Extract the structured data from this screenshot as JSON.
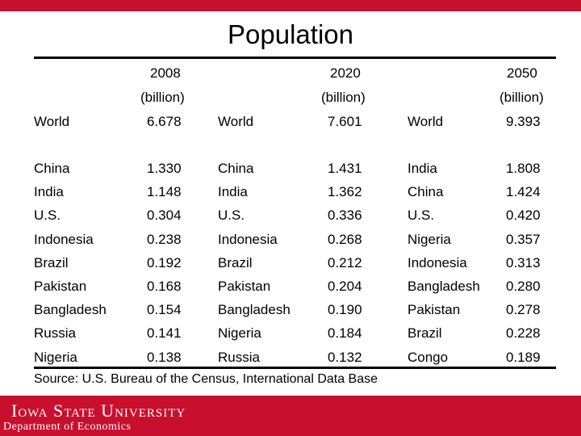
{
  "title": "Population",
  "headers": {
    "y2008": "2008",
    "y2020": "2020",
    "y2050": "2050",
    "unit_2008": "(billion)",
    "unit_2020": "(billion)",
    "unit_2050": "(billion)"
  },
  "rows": [
    {
      "c2008": "World",
      "v2008": "6.678",
      "c2020": "World",
      "v2020": "7.601",
      "c2050": "World",
      "v2050": "9.393"
    },
    {
      "c2008": "China",
      "v2008": "1.330",
      "c2020": "China",
      "v2020": "1.431",
      "c2050": "India",
      "v2050": "1.808"
    },
    {
      "c2008": "India",
      "v2008": "1.148",
      "c2020": "India",
      "v2020": "1.362",
      "c2050": "China",
      "v2050": "1.424"
    },
    {
      "c2008": "U.S.",
      "v2008": "0.304",
      "c2020": "U.S.",
      "v2020": "0.336",
      "c2050": "U.S.",
      "v2050": "0.420"
    },
    {
      "c2008": "Indonesia",
      "v2008": "0.238",
      "c2020": "Indonesia",
      "v2020": "0.268",
      "c2050": "Nigeria",
      "v2050": "0.357"
    },
    {
      "c2008": "Brazil",
      "v2008": "0.192",
      "c2020": "Brazil",
      "v2020": "0.212",
      "c2050": "Indonesia",
      "v2050": "0.313"
    },
    {
      "c2008": "Pakistan",
      "v2008": "0.168",
      "c2020": "Pakistan",
      "v2020": "0.204",
      "c2050": "Bangladesh",
      "v2050": "0.280"
    },
    {
      "c2008": "Bangladesh",
      "v2008": "0.154",
      "c2020": "Bangladesh",
      "v2020": "0.190",
      "c2050": "Pakistan",
      "v2050": "0.278"
    },
    {
      "c2008": "Russia",
      "v2008": "0.141",
      "c2020": "Nigeria",
      "v2020": "0.184",
      "c2050": "Brazil",
      "v2050": "0.228"
    },
    {
      "c2008": "Nigeria",
      "v2008": "0.138",
      "c2020": "Russia",
      "v2020": "0.132",
      "c2050": "Congo",
      "v2050": "0.189"
    }
  ],
  "source": "Source: U.S. Bureau of the Census, International Data Base",
  "footer": {
    "university": "Iowa State University",
    "department": "Department of Economics"
  },
  "colors": {
    "accent": "#c8102e"
  }
}
